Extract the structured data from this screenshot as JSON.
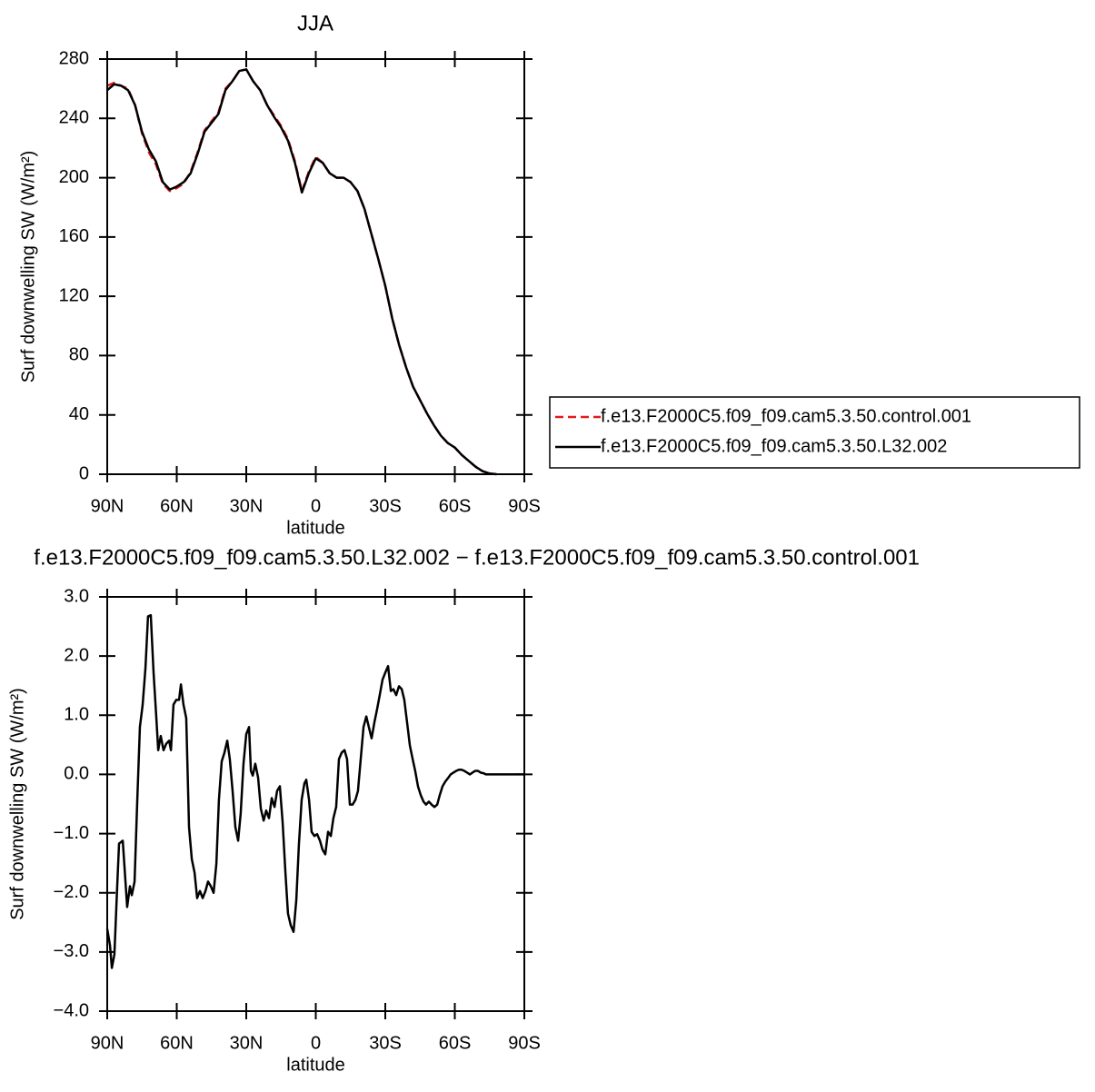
{
  "chart_data": [
    {
      "type": "line",
      "title": "JJA",
      "xlabel": "latitude",
      "ylabel": "Surf downwelling SW (W/m²)",
      "x": [
        90,
        87,
        84,
        81,
        78,
        75,
        72,
        69,
        66,
        63,
        60,
        57,
        54,
        51,
        48,
        45,
        42,
        39,
        36,
        33,
        30,
        27,
        24,
        21,
        18,
        15,
        12,
        9,
        6,
        3,
        0,
        -3,
        -6,
        -9,
        -12,
        -15,
        -18,
        -21,
        -24,
        -27,
        -30,
        -33,
        -36,
        -39,
        -42,
        -45,
        -48,
        -51,
        -54,
        -57,
        -60,
        -63,
        -66,
        -69,
        -72,
        -75,
        -78
      ],
      "series": [
        {
          "name": "f.e13.F2000C5.f09_f09.cam5.3.50.control.001",
          "color": "#e31a1c",
          "linestyle": "dashed",
          "values": [
            262,
            264,
            262,
            260,
            249,
            230,
            217,
            209,
            196,
            191,
            193,
            196,
            204,
            217,
            232,
            238,
            244,
            260,
            265,
            272,
            273,
            265,
            259,
            249,
            242,
            235,
            226,
            211,
            191,
            204,
            214,
            210,
            203,
            200,
            200,
            197,
            191,
            179,
            162,
            145,
            127,
            105,
            87,
            72,
            59,
            50,
            41,
            33,
            26,
            21,
            18,
            13,
            9,
            5,
            2,
            0.5,
            0
          ]
        },
        {
          "name": "f.e13.F2000C5.f09_f09.cam5.3.50.L32.002",
          "color": "#000000",
          "linestyle": "solid",
          "values": [
            259,
            263,
            262,
            259,
            249,
            231,
            219,
            211,
            197,
            192,
            194,
            197,
            203,
            216,
            231,
            237,
            243,
            259,
            265,
            272,
            273,
            265,
            259,
            249,
            241,
            234,
            225,
            210,
            190,
            203,
            213,
            210,
            203,
            200,
            200,
            197,
            191,
            179,
            162,
            145,
            127,
            105,
            87,
            72,
            59,
            50,
            41,
            33,
            26,
            21,
            18,
            13,
            9,
            5,
            2,
            0.5,
            0
          ]
        }
      ],
      "xlim": [
        90,
        -90
      ],
      "xticks": [
        {
          "value": 90,
          "label": "90N"
        },
        {
          "value": 60,
          "label": "60N"
        },
        {
          "value": 30,
          "label": "30N"
        },
        0,
        {
          "value": -30,
          "label": "30S"
        },
        {
          "value": -60,
          "label": "60S"
        },
        {
          "value": -90,
          "label": "90S"
        }
      ],
      "ylim": [
        0,
        280
      ],
      "yticks": [
        0,
        40,
        80,
        120,
        160,
        200,
        240,
        280
      ],
      "legend": "right"
    },
    {
      "type": "line",
      "title": "f.e13.F2000C5.f09_f09.cam5.3.50.L32.002 − f.e13.F2000C5.f09_f09.cam5.3.50.control.001",
      "xlabel": "latitude",
      "ylabel": "Surf downwelling SW (W/m²)",
      "x": [
        90.0,
        88.8,
        88.0,
        86.9,
        85.7,
        84.9,
        83.3,
        81.4,
        80.2,
        79.4,
        78.2,
        77.1,
        75.9,
        74.7,
        73.5,
        72.4,
        71.2,
        70.0,
        68.8,
        68.0,
        66.9,
        65.7,
        64.5,
        63.3,
        62.5,
        61.4,
        60.2,
        59.0,
        58.2,
        57.1,
        55.9,
        54.7,
        53.5,
        52.3,
        51.2,
        50.0,
        48.8,
        47.6,
        46.5,
        45.3,
        44.1,
        42.9,
        41.8,
        40.6,
        39.4,
        38.2,
        37.1,
        35.9,
        34.7,
        33.5,
        32.4,
        31.2,
        30.0,
        28.8,
        28.0,
        27.2,
        26.1,
        24.9,
        23.7,
        22.5,
        21.4,
        20.2,
        19.0,
        17.8,
        16.7,
        15.5,
        14.3,
        13.1,
        12.0,
        10.8,
        9.6,
        8.4,
        7.3,
        6.1,
        4.9,
        4.1,
        2.9,
        1.8,
        0.6,
        -0.6,
        -1.8,
        -2.9,
        -4.1,
        -5.3,
        -6.5,
        -7.6,
        -8.8,
        -10.0,
        -11.2,
        -12.4,
        -13.5,
        -14.7,
        -15.9,
        -17.1,
        -18.2,
        -19.4,
        -20.6,
        -21.8,
        -22.9,
        -24.1,
        -25.3,
        -26.5,
        -27.6,
        -28.8,
        -30.0,
        -31.2,
        -32.4,
        -33.5,
        -34.7,
        -35.9,
        -37.1,
        -38.2,
        -39.4,
        -40.6,
        -41.8,
        -42.9,
        -44.1,
        -45.3,
        -46.5,
        -47.6,
        -48.8,
        -50.0,
        -51.2,
        -52.4,
        -53.5,
        -54.7,
        -55.9,
        -57.1,
        -58.2,
        -59.4,
        -60.6,
        -61.8,
        -62.9,
        -64.1,
        -65.3,
        -66.5,
        -67.6,
        -68.8,
        -70.0,
        -71.2,
        -72.4,
        -73.5,
        -75.5,
        -83.3,
        -90.0
      ],
      "series": [
        {
          "color": "#000000",
          "values": [
            -2.61,
            -2.89,
            -3.27,
            -3.04,
            -1.89,
            -1.17,
            -1.12,
            -2.24,
            -1.89,
            -2.04,
            -1.81,
            -0.51,
            0.8,
            1.18,
            1.8,
            2.67,
            2.69,
            1.72,
            0.95,
            0.41,
            0.65,
            0.41,
            0.52,
            0.57,
            0.41,
            1.18,
            1.26,
            1.26,
            1.52,
            1.18,
            0.95,
            -0.89,
            -1.43,
            -1.66,
            -2.09,
            -1.97,
            -2.09,
            -1.97,
            -1.81,
            -1.89,
            -2.0,
            -1.51,
            -0.43,
            0.22,
            0.37,
            0.57,
            0.26,
            -0.28,
            -0.89,
            -1.12,
            -0.66,
            0.18,
            0.68,
            0.8,
            0.06,
            -0.02,
            0.18,
            -0.05,
            -0.58,
            -0.78,
            -0.61,
            -0.74,
            -0.4,
            -0.55,
            -0.28,
            -0.2,
            -0.81,
            -1.66,
            -2.35,
            -2.55,
            -2.66,
            -2.12,
            -1.2,
            -0.43,
            -0.15,
            -0.09,
            -0.43,
            -0.97,
            -1.04,
            -1.01,
            -1.12,
            -1.27,
            -1.35,
            -0.97,
            -1.04,
            -0.74,
            -0.55,
            0.26,
            0.37,
            0.41,
            0.26,
            -0.51,
            -0.51,
            -0.43,
            -0.28,
            0.26,
            0.8,
            0.98,
            0.8,
            0.61,
            0.88,
            1.11,
            1.34,
            1.6,
            1.72,
            1.83,
            1.41,
            1.44,
            1.34,
            1.49,
            1.44,
            1.26,
            0.88,
            0.49,
            0.26,
            0.06,
            -0.2,
            -0.35,
            -0.46,
            -0.51,
            -0.46,
            -0.51,
            -0.55,
            -0.51,
            -0.35,
            -0.2,
            -0.12,
            -0.06,
            0.0,
            0.03,
            0.06,
            0.08,
            0.08,
            0.06,
            0.03,
            0.0,
            0.03,
            0.06,
            0.06,
            0.03,
            0.02,
            0.0,
            0.0,
            0.0,
            0.0
          ]
        }
      ],
      "xlim": [
        90,
        -90
      ],
      "xticks": [
        {
          "value": 90,
          "label": "90N"
        },
        {
          "value": 60,
          "label": "60N"
        },
        {
          "value": 30,
          "label": "30N"
        },
        0,
        {
          "value": -30,
          "label": "30S"
        },
        {
          "value": -60,
          "label": "60S"
        },
        {
          "value": -90,
          "label": "90S"
        }
      ],
      "ylim": [
        -4,
        3
      ],
      "yticks": [
        {
          "value": -4,
          "label": "−4.0"
        },
        {
          "value": -3,
          "label": "−3.0"
        },
        {
          "value": -2,
          "label": "−2.0"
        },
        {
          "value": -1,
          "label": "−1.0"
        },
        {
          "value": 0,
          "label": "0.0"
        },
        {
          "value": 1,
          "label": "1.0"
        },
        {
          "value": 2,
          "label": "2.0"
        },
        {
          "value": 3,
          "label": "3.0"
        }
      ]
    }
  ]
}
